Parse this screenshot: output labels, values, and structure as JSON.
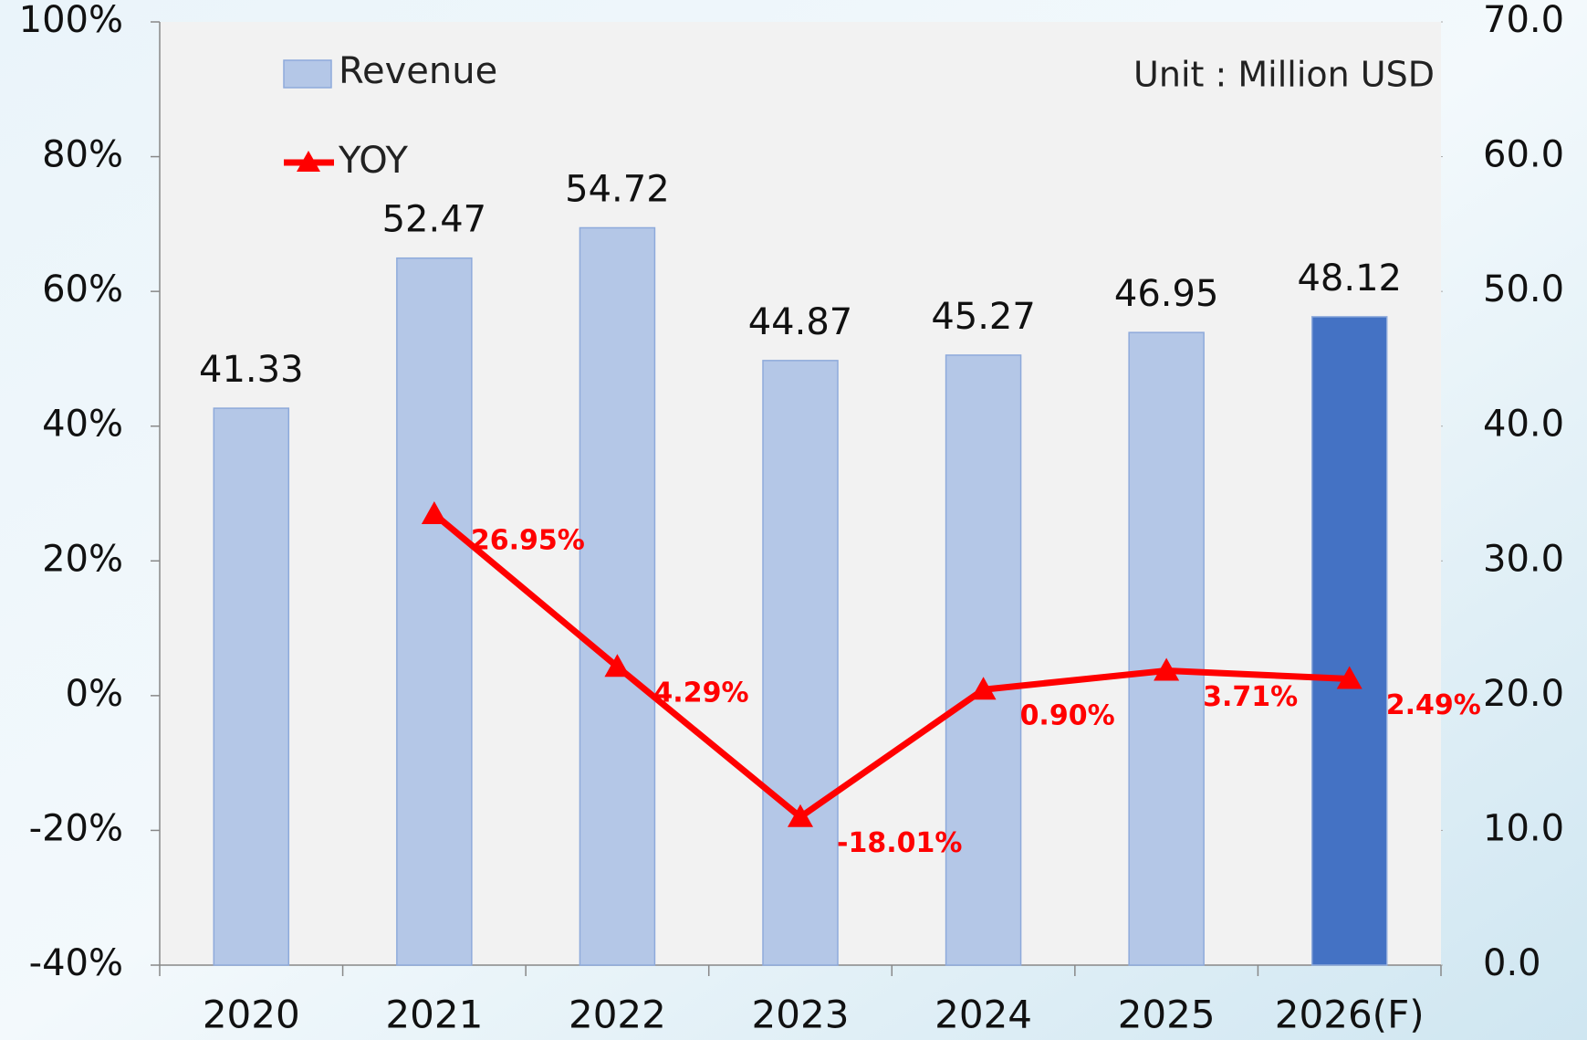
{
  "chart_data": {
    "type": "bar-line",
    "annotation": "Unit : Million USD",
    "categories": [
      "2020",
      "2021",
      "2022",
      "2023",
      "2024",
      "2025",
      "2026(F)"
    ],
    "series": [
      {
        "name": "Revenue",
        "type": "bar",
        "axis": "y2",
        "color": "#b4c7e7",
        "colors": [
          "#b4c7e7",
          "#b4c7e7",
          "#b4c7e7",
          "#b4c7e7",
          "#b4c7e7",
          "#b4c7e7",
          "#4472c4"
        ],
        "values": [
          41.33,
          52.47,
          54.72,
          44.87,
          45.27,
          46.95,
          48.12
        ]
      },
      {
        "name": "YOY",
        "type": "line",
        "axis": "y",
        "color": "#ff0000",
        "values": [
          null,
          26.95,
          4.29,
          -18.01,
          0.9,
          3.71,
          2.49
        ],
        "value_labels": [
          null,
          "26.95%",
          "4.29%",
          "-18.01%",
          "0.90%",
          "3.71%",
          "2.49%"
        ]
      }
    ],
    "ylim": [
      -40,
      100
    ],
    "yticks": [
      {
        "value": -40,
        "label": "-40%"
      },
      {
        "value": -20,
        "label": "-20%"
      },
      {
        "value": 0,
        "label": "0%"
      },
      {
        "value": 20,
        "label": "20%"
      },
      {
        "value": 40,
        "label": "40%"
      },
      {
        "value": 60,
        "label": "60%"
      },
      {
        "value": 80,
        "label": "80%"
      },
      {
        "value": 100,
        "label": "100%"
      }
    ],
    "y2lim": [
      0,
      70
    ],
    "y2ticks": [
      {
        "value": 0,
        "label": "0.0"
      },
      {
        "value": 10,
        "label": "10.0"
      },
      {
        "value": 20,
        "label": "20.0"
      },
      {
        "value": 30,
        "label": "30.0"
      },
      {
        "value": 40,
        "label": "40.0"
      },
      {
        "value": 50,
        "label": "50.0"
      },
      {
        "value": 60,
        "label": "60.0"
      },
      {
        "value": 70,
        "label": "70.0"
      }
    ],
    "legend": "top-left"
  }
}
